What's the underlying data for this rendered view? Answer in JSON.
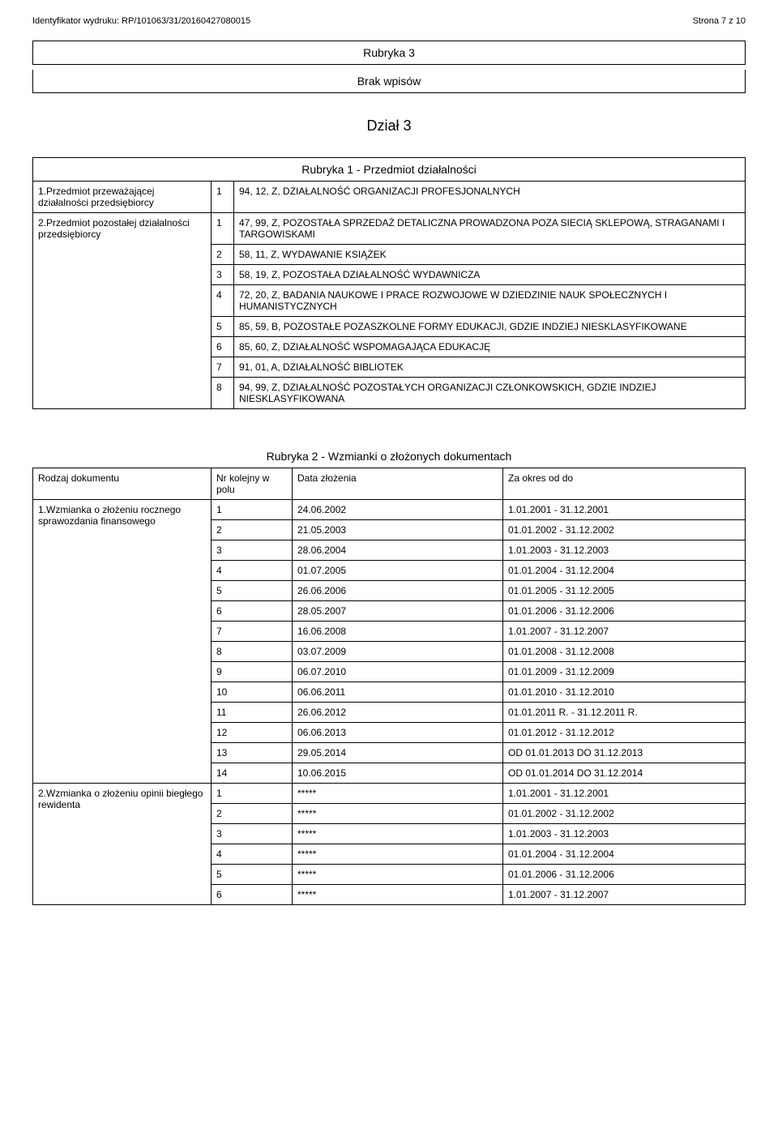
{
  "header": {
    "left": "Identyfikator wydruku: RP/101063/31/20160427080015",
    "right": "Strona 7 z 10"
  },
  "rubryka3": {
    "title": "Rubryka 3",
    "subtitle": "Brak wpisów"
  },
  "dzial3_heading": "Dział 3",
  "rubryka1": {
    "title": "Rubryka 1 - Przedmiot działalności",
    "rows": [
      {
        "label": "1.Przedmiot przeważającej działalności przedsiębiorcy",
        "items": [
          {
            "n": "1",
            "text": "94, 12, Z, DZIAŁALNOŚĆ ORGANIZACJI PROFESJONALNYCH"
          }
        ]
      },
      {
        "label": "2.Przedmiot pozostałej działalności przedsiębiorcy",
        "items": [
          {
            "n": "1",
            "text": "47, 99, Z, POZOSTAŁA SPRZEDAŻ DETALICZNA PROWADZONA POZA SIECIĄ SKLEPOWĄ, STRAGANAMI I TARGOWISKAMI"
          },
          {
            "n": "2",
            "text": "58, 11, Z, WYDAWANIE KSIĄŻEK"
          },
          {
            "n": "3",
            "text": "58, 19, Z, POZOSTAŁA DZIAŁALNOŚĆ WYDAWNICZA"
          },
          {
            "n": "4",
            "text": "72, 20, Z, BADANIA NAUKOWE I PRACE ROZWOJOWE W DZIEDZINIE NAUK SPOŁECZNYCH I HUMANISTYCZNYCH"
          },
          {
            "n": "5",
            "text": "85, 59, B, POZOSTAŁE POZASZKOLNE FORMY EDUKACJI, GDZIE INDZIEJ NIESKLASYFIKOWANE"
          },
          {
            "n": "6",
            "text": "85, 60, Z, DZIAŁALNOŚĆ WSPOMAGAJĄCA EDUKACJĘ"
          },
          {
            "n": "7",
            "text": "91, 01, A, DZIAŁALNOŚĆ BIBLIOTEK"
          },
          {
            "n": "8",
            "text": "94, 99, Z, DZIAŁALNOŚĆ POZOSTAŁYCH ORGANIZACJI CZŁONKOWSKICH, GDZIE INDZIEJ NIESKLASYFIKOWANA"
          }
        ]
      }
    ]
  },
  "rubryka2": {
    "title": "Rubryka 2 - Wzmianki o złożonych dokumentach",
    "head": {
      "c1": "Rodzaj dokumentu",
      "c2": "Nr kolejny w polu",
      "c3": "Data złożenia",
      "c4": "Za okres od do"
    },
    "groups": [
      {
        "label": "1.Wzmianka o złożeniu rocznego sprawozdania finansowego",
        "rows": [
          {
            "n": "1",
            "date": "24.06.2002",
            "period": "1.01.2001 - 31.12.2001"
          },
          {
            "n": "2",
            "date": "21.05.2003",
            "period": "01.01.2002 - 31.12.2002"
          },
          {
            "n": "3",
            "date": "28.06.2004",
            "period": "1.01.2003 - 31.12.2003"
          },
          {
            "n": "4",
            "date": "01.07.2005",
            "period": "01.01.2004 - 31.12.2004"
          },
          {
            "n": "5",
            "date": "26.06.2006",
            "period": "01.01.2005 - 31.12.2005"
          },
          {
            "n": "6",
            "date": "28.05.2007",
            "period": "01.01.2006 - 31.12.2006"
          },
          {
            "n": "7",
            "date": "16.06.2008",
            "period": "1.01.2007 - 31.12.2007"
          },
          {
            "n": "8",
            "date": "03.07.2009",
            "period": "01.01.2008 - 31.12.2008"
          },
          {
            "n": "9",
            "date": "06.07.2010",
            "period": "01.01.2009 - 31.12.2009"
          },
          {
            "n": "10",
            "date": "06.06.2011",
            "period": "01.01.2010 - 31.12.2010"
          },
          {
            "n": "11",
            "date": "26.06.2012",
            "period": "01.01.2011 R. - 31.12.2011 R."
          },
          {
            "n": "12",
            "date": "06.06.2013",
            "period": "01.01.2012 - 31.12.2012"
          },
          {
            "n": "13",
            "date": "29.05.2014",
            "period": "OD 01.01.2013 DO 31.12.2013"
          },
          {
            "n": "14",
            "date": "10.06.2015",
            "period": "OD 01.01.2014 DO 31.12.2014"
          }
        ]
      },
      {
        "label": "2.Wzmianka o złożeniu opinii biegłego rewidenta",
        "rows": [
          {
            "n": "1",
            "date": "*****",
            "period": "1.01.2001 - 31.12.2001"
          },
          {
            "n": "2",
            "date": "*****",
            "period": "01.01.2002 - 31.12.2002"
          },
          {
            "n": "3",
            "date": "*****",
            "period": "1.01.2003 - 31.12.2003"
          },
          {
            "n": "4",
            "date": "*****",
            "period": "01.01.2004 - 31.12.2004"
          },
          {
            "n": "5",
            "date": "*****",
            "period": "01.01.2006 - 31.12.2006"
          },
          {
            "n": "6",
            "date": "*****",
            "period": "1.01.2007 - 31.12.2007"
          }
        ]
      }
    ]
  }
}
